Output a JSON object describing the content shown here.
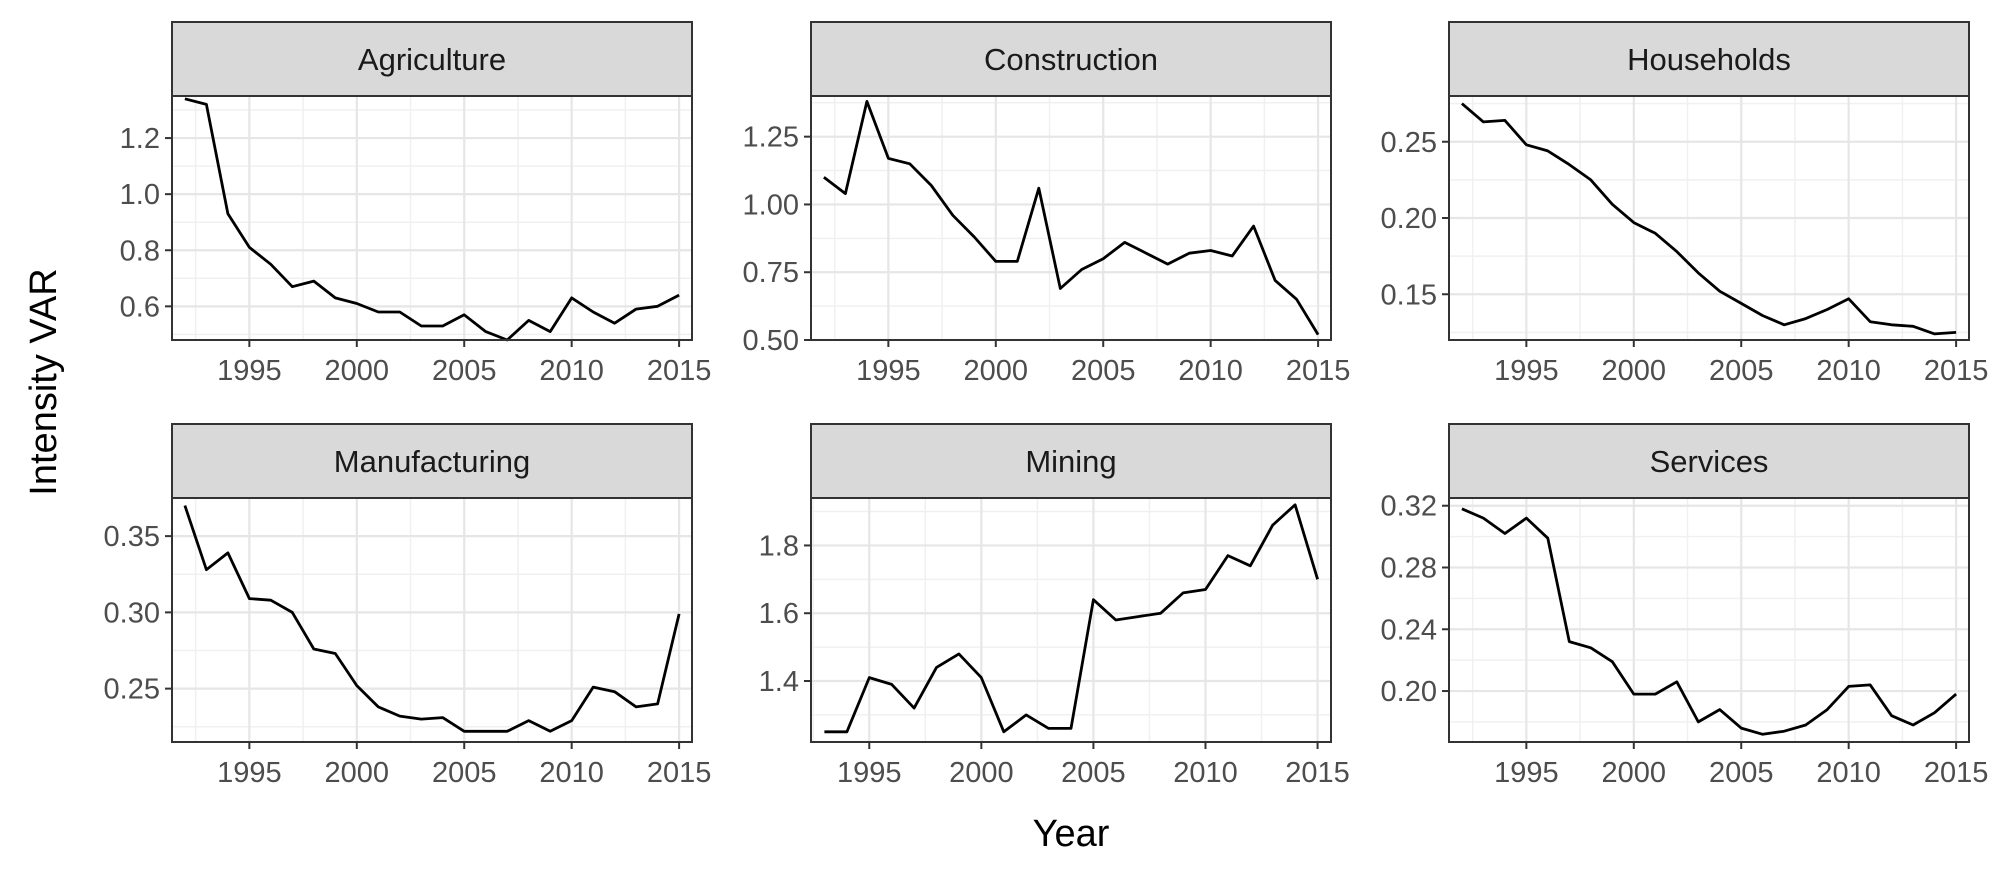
{
  "chart_data": {
    "type": "line",
    "xlabel": "Year",
    "ylabel": "Intensity VAR",
    "line_color": "#000000",
    "strip_fill": "#d9d9d9",
    "grid": true,
    "facets": [
      {
        "name": "Agriculture",
        "xlim": [
          1991.4,
          2015.6
        ],
        "ylim": [
          0.48,
          1.35
        ],
        "xticks": [
          1995,
          2000,
          2005,
          2010,
          2015
        ],
        "yticks": [
          0.6,
          0.8,
          1.0,
          1.2
        ],
        "ytick_labels": [
          "0.6",
          "0.8",
          "1.0",
          "1.2"
        ],
        "x": [
          1992,
          1993,
          1994,
          1995,
          1996,
          1997,
          1998,
          1999,
          2000,
          2001,
          2002,
          2003,
          2004,
          2005,
          2006,
          2007,
          2008,
          2009,
          2010,
          2011,
          2012,
          2013,
          2014,
          2015
        ],
        "y": [
          1.34,
          1.32,
          0.93,
          0.81,
          0.75,
          0.67,
          0.69,
          0.63,
          0.61,
          0.58,
          0.58,
          0.53,
          0.53,
          0.57,
          0.51,
          0.48,
          0.55,
          0.51,
          0.63,
          0.58,
          0.54,
          0.59,
          0.6,
          0.64
        ]
      },
      {
        "name": "Construction",
        "xlim": [
          1991.4,
          2015.6
        ],
        "ylim": [
          0.5,
          1.4
        ],
        "xticks": [
          1995,
          2000,
          2005,
          2010,
          2015
        ],
        "yticks": [
          0.5,
          0.75,
          1.0,
          1.25
        ],
        "ytick_labels": [
          "0.50",
          "0.75",
          "1.00",
          "1.25"
        ],
        "x": [
          1992,
          1993,
          1994,
          1995,
          1996,
          1997,
          1998,
          1999,
          2000,
          2001,
          2002,
          2003,
          2004,
          2005,
          2006,
          2007,
          2008,
          2009,
          2010,
          2011,
          2012,
          2013,
          2014,
          2015
        ],
        "y": [
          1.1,
          1.04,
          1.38,
          1.17,
          1.15,
          1.07,
          0.96,
          0.88,
          0.79,
          0.79,
          1.06,
          0.69,
          0.76,
          0.8,
          0.86,
          0.82,
          0.78,
          0.82,
          0.83,
          0.81,
          0.92,
          0.72,
          0.65,
          0.52
        ]
      },
      {
        "name": "Households",
        "xlim": [
          1991.4,
          2015.6
        ],
        "ylim": [
          0.12,
          0.28
        ],
        "xticks": [
          1995,
          2000,
          2005,
          2010,
          2015
        ],
        "yticks": [
          0.15,
          0.2,
          0.25
        ],
        "ytick_labels": [
          "0.15",
          "0.20",
          "0.25"
        ],
        "x": [
          1992,
          1993,
          1994,
          1995,
          1996,
          1997,
          1998,
          1999,
          2000,
          2001,
          2002,
          2003,
          2004,
          2005,
          2006,
          2007,
          2008,
          2009,
          2010,
          2011,
          2012,
          2013,
          2014,
          2015
        ],
        "y": [
          0.275,
          0.263,
          0.264,
          0.248,
          0.244,
          0.235,
          0.225,
          0.209,
          0.197,
          0.19,
          0.178,
          0.164,
          0.152,
          0.144,
          0.136,
          0.13,
          0.134,
          0.14,
          0.147,
          0.132,
          0.13,
          0.129,
          0.124,
          0.125
        ]
      },
      {
        "name": "Manufacturing",
        "xlim": [
          1991.4,
          2015.6
        ],
        "ylim": [
          0.215,
          0.375
        ],
        "xticks": [
          1995,
          2000,
          2005,
          2010,
          2015
        ],
        "yticks": [
          0.25,
          0.3,
          0.35
        ],
        "ytick_labels": [
          "0.25",
          "0.30",
          "0.35"
        ],
        "x": [
          1992,
          1993,
          1994,
          1995,
          1996,
          1997,
          1998,
          1999,
          2000,
          2001,
          2002,
          2003,
          2004,
          2005,
          2006,
          2007,
          2008,
          2009,
          2010,
          2011,
          2012,
          2013,
          2014,
          2015
        ],
        "y": [
          0.37,
          0.328,
          0.339,
          0.309,
          0.308,
          0.3,
          0.276,
          0.273,
          0.252,
          0.238,
          0.232,
          0.23,
          0.231,
          0.222,
          0.222,
          0.222,
          0.229,
          0.222,
          0.229,
          0.251,
          0.248,
          0.238,
          0.24,
          0.299
        ]
      },
      {
        "name": "Mining",
        "xlim": [
          1992.4,
          2015.6
        ],
        "ylim": [
          1.22,
          1.94
        ],
        "xticks": [
          1995,
          2000,
          2005,
          2010,
          2015
        ],
        "yticks": [
          1.4,
          1.6,
          1.8
        ],
        "ytick_labels": [
          "1.4",
          "1.6",
          "1.8"
        ],
        "x": [
          1993,
          1994,
          1995,
          1996,
          1997,
          1998,
          1999,
          2000,
          2001,
          2002,
          2003,
          2004,
          2005,
          2006,
          2007,
          2008,
          2009,
          2010,
          2011,
          2012,
          2013,
          2014,
          2015
        ],
        "y": [
          1.25,
          1.25,
          1.41,
          1.39,
          1.32,
          1.44,
          1.48,
          1.41,
          1.25,
          1.3,
          1.26,
          1.26,
          1.64,
          1.58,
          1.59,
          1.6,
          1.66,
          1.67,
          1.77,
          1.74,
          1.86,
          1.92,
          1.7
        ]
      },
      {
        "name": "Services",
        "xlim": [
          1991.4,
          2015.6
        ],
        "ylim": [
          0.167,
          0.325
        ],
        "xticks": [
          1995,
          2000,
          2005,
          2010,
          2015
        ],
        "yticks": [
          0.2,
          0.24,
          0.28,
          0.32
        ],
        "ytick_labels": [
          "0.20",
          "0.24",
          "0.28",
          "0.32"
        ],
        "x": [
          1992,
          1993,
          1994,
          1995,
          1996,
          1997,
          1998,
          1999,
          2000,
          2001,
          2002,
          2003,
          2004,
          2005,
          2006,
          2007,
          2008,
          2009,
          2010,
          2011,
          2012,
          2013,
          2014,
          2015
        ],
        "y": [
          0.318,
          0.312,
          0.302,
          0.312,
          0.299,
          0.232,
          0.228,
          0.219,
          0.198,
          0.198,
          0.206,
          0.18,
          0.188,
          0.176,
          0.172,
          0.174,
          0.178,
          0.188,
          0.203,
          0.204,
          0.184,
          0.178,
          0.186,
          0.198
        ]
      }
    ]
  }
}
